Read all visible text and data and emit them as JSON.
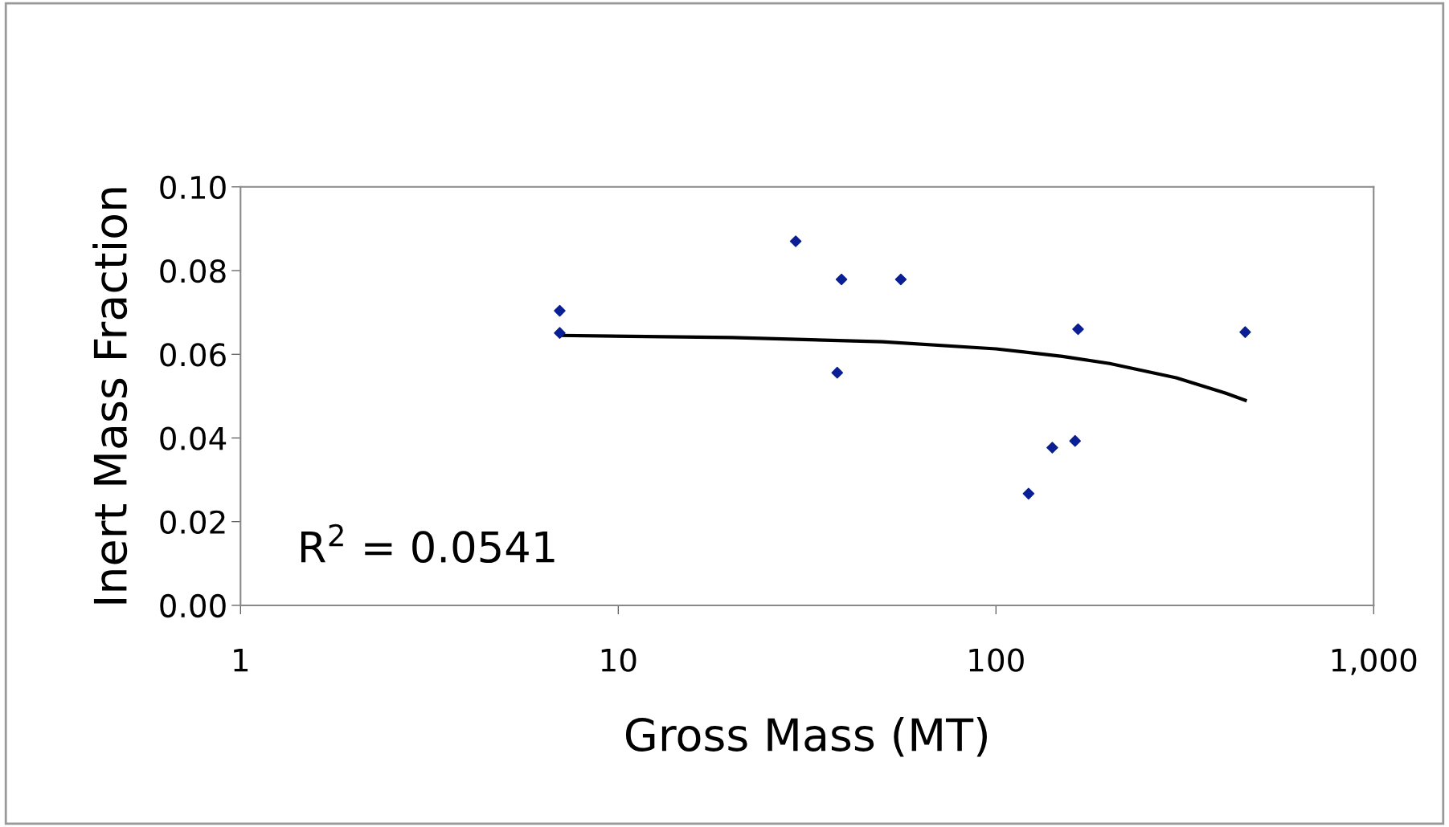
{
  "chart_data": {
    "type": "scatter",
    "xlabel": "Gross Mass (MT)",
    "ylabel": "Inert Mass Fraction",
    "log": "x",
    "grid": false,
    "marker": "diamond",
    "xlim": [
      1,
      1000
    ],
    "xticks": [
      1,
      10,
      100,
      {
        "value": 1000,
        "label": "1,000"
      }
    ],
    "ylim": [
      0,
      0.1
    ],
    "yticks": [
      {
        "value": 0,
        "label": "0.00"
      },
      {
        "value": 0.02,
        "label": "0.02"
      },
      {
        "value": 0.04,
        "label": "0.04"
      },
      {
        "value": 0.06,
        "label": "0.06"
      },
      {
        "value": 0.08,
        "label": "0.08"
      },
      {
        "value": 0.1,
        "label": "0.10"
      }
    ],
    "series": [
      {
        "color": "#0a1f96",
        "x": [
          7,
          7,
          29.5,
          39,
          38,
          56,
          122,
          141,
          162,
          165,
          457
        ],
        "values": [
          0.0704,
          0.0651,
          0.087,
          0.0779,
          0.0556,
          0.0779,
          0.0267,
          0.0377,
          0.0393,
          0.066,
          0.0653
        ]
      },
      {
        "type": "line",
        "color": "#000000",
        "marker": "none",
        "x": [
          7,
          20,
          50,
          100,
          150,
          200,
          300,
          400,
          457
        ],
        "values": [
          0.0645,
          0.064,
          0.063,
          0.0613,
          0.0595,
          0.0578,
          0.0544,
          0.0509,
          0.049
        ]
      }
    ],
    "annotations": [
      "R$^{2}$ = 0.0541"
    ]
  }
}
